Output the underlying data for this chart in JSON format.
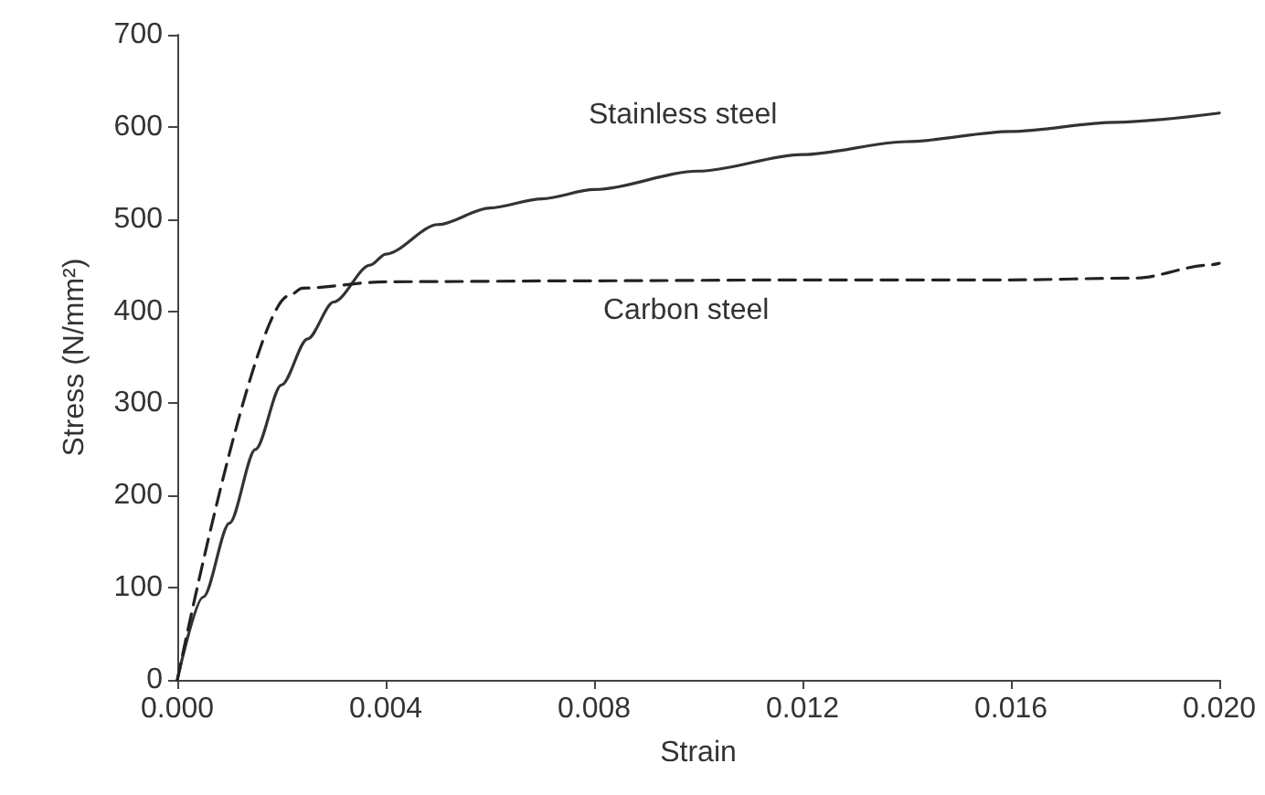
{
  "chart_data": {
    "type": "line",
    "xlabel": "Strain",
    "ylabel": "Stress (N/mm²)",
    "xlim": [
      0,
      0.02
    ],
    "ylim": [
      0,
      700
    ],
    "xticks": [
      {
        "value": 0,
        "label": "0.000"
      },
      {
        "value": 0.004,
        "label": "0.004"
      },
      {
        "value": 0.008,
        "label": "0.008"
      },
      {
        "value": 0.012,
        "label": "0.012"
      },
      {
        "value": 0.016,
        "label": "0.016"
      },
      {
        "value": 0.02,
        "label": "0.020"
      }
    ],
    "yticks": [
      0,
      100,
      200,
      300,
      400,
      500,
      600,
      700
    ],
    "grid": false,
    "marker": "none",
    "series": [
      {
        "name": "Stainless steel",
        "color": "#333333",
        "line_style": "solid",
        "x": [
          0,
          0.0005,
          0.001,
          0.0015,
          0.002,
          0.0025,
          0.003,
          0.0037,
          0.004,
          0.005,
          0.006,
          0.007,
          0.008,
          0.01,
          0.012,
          0.014,
          0.016,
          0.018,
          0.02
        ],
        "values": [
          0,
          90,
          170,
          250,
          320,
          370,
          410,
          450,
          462,
          494,
          512,
          522,
          532,
          552,
          570,
          584,
          595,
          605,
          615
        ]
      },
      {
        "name": "Carbon steel",
        "color": "#222222",
        "line_style": "dashed",
        "x": [
          0,
          0.00215,
          0.0024,
          0.004,
          0.008,
          0.012,
          0.016,
          0.0184,
          0.0198,
          0.02
        ],
        "values": [
          0,
          417,
          425,
          432,
          433,
          434,
          434,
          436,
          450,
          452
        ]
      }
    ]
  }
}
